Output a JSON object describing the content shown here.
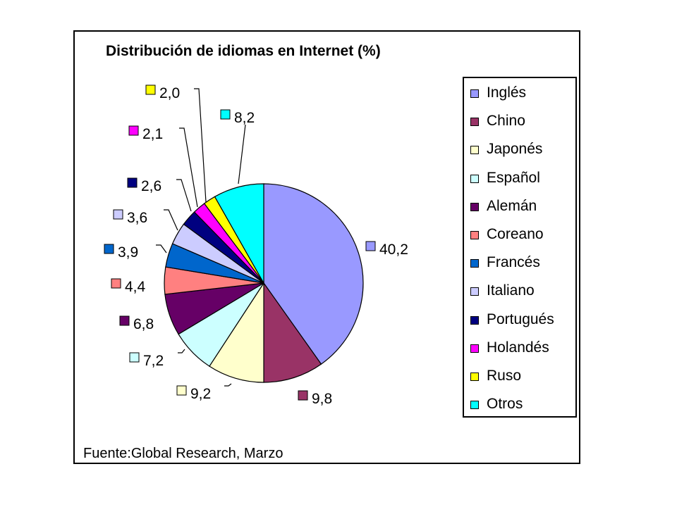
{
  "chart_data": {
    "type": "pie",
    "title": "Distribución de idiomas en Internet (%)",
    "source": "Fuente:Global Research, Marzo",
    "legend_position": "right",
    "slices": [
      {
        "label": "Inglés",
        "value": 40.2,
        "display": "40,2",
        "color": "#9999ff"
      },
      {
        "label": "Chino",
        "value": 9.8,
        "display": "9,8",
        "color": "#993366"
      },
      {
        "label": "Japonés",
        "value": 9.2,
        "display": "9,2",
        "color": "#ffffcc"
      },
      {
        "label": "Español",
        "value": 7.2,
        "display": "7,2",
        "color": "#ccffff"
      },
      {
        "label": "Alemán",
        "value": 6.8,
        "display": "6,8",
        "color": "#660066"
      },
      {
        "label": "Coreano",
        "value": 4.4,
        "display": "4,4",
        "color": "#ff8080"
      },
      {
        "label": "Francés",
        "value": 3.9,
        "display": "3,9",
        "color": "#0066cc"
      },
      {
        "label": "Italiano",
        "value": 3.6,
        "display": "3,6",
        "color": "#ccccff"
      },
      {
        "label": "Portugués",
        "value": 2.6,
        "display": "2,6",
        "color": "#000080"
      },
      {
        "label": "Holandés",
        "value": 2.1,
        "display": "2,1",
        "color": "#ff00ff"
      },
      {
        "label": "Ruso",
        "value": 2.0,
        "display": "2,0",
        "color": "#ffff00"
      },
      {
        "label": "Otros",
        "value": 8.2,
        "display": "8,2",
        "color": "#00ffff"
      }
    ]
  }
}
